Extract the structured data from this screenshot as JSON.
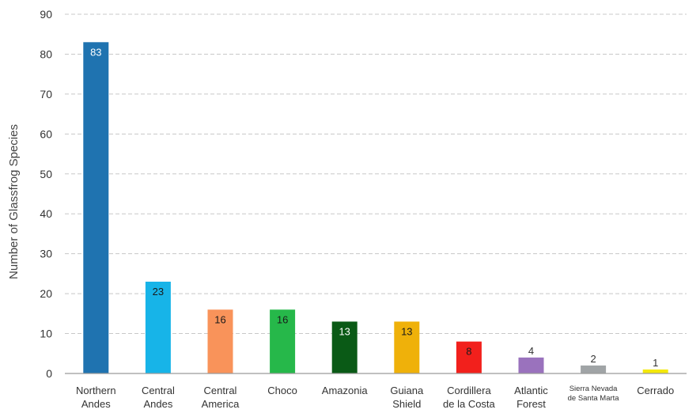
{
  "chart_data": {
    "type": "bar",
    "ylabel": "Number of Glassfrog Species",
    "xlabel": "",
    "ylim": [
      0,
      90
    ],
    "yticks": [
      0,
      10,
      20,
      30,
      40,
      50,
      60,
      70,
      80,
      90
    ],
    "grid": true,
    "categories": [
      [
        "Northern",
        "Andes"
      ],
      [
        "Central",
        "Andes"
      ],
      [
        "Central",
        "America"
      ],
      [
        "Choco"
      ],
      [
        "Amazonia"
      ],
      [
        "Guiana",
        "Shield"
      ],
      [
        "Cordillera",
        "de la Costa"
      ],
      [
        "Atlantic",
        "Forest"
      ],
      [
        "Sierra Nevada",
        "de Santa Marta"
      ],
      [
        "Cerrado"
      ]
    ],
    "values": [
      83,
      23,
      16,
      16,
      13,
      13,
      8,
      4,
      2,
      1
    ],
    "data_labels": [
      "83",
      "23",
      "16",
      "16",
      "13",
      "13",
      "8",
      "4",
      "2",
      "1"
    ],
    "colors": [
      "#1f73b0",
      "#17b4e8",
      "#f9935a",
      "#26b84a",
      "#0a5a16",
      "#efb10a",
      "#f2201c",
      "#9a72bd",
      "#a0a4a6",
      "#f4e80a"
    ],
    "label_colors": [
      "#ffffff",
      "#1a1a1a",
      "#1a1a1a",
      "#1a1a1a",
      "#ffffff",
      "#1a1a1a",
      "#1a1a1a",
      "#1a1a1a",
      "#1a1a1a",
      "#1a1a1a"
    ]
  }
}
